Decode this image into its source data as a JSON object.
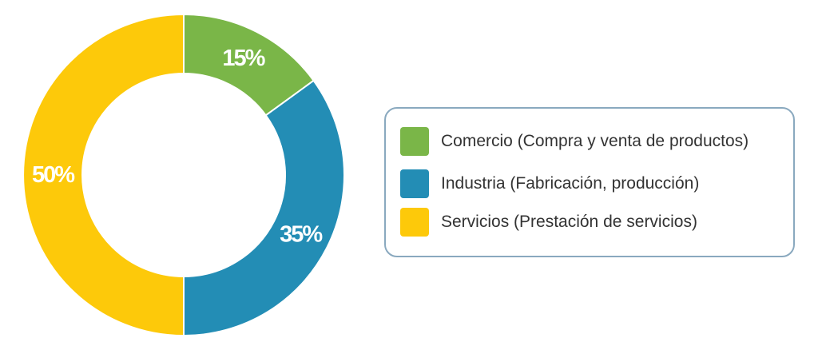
{
  "chart_data": {
    "type": "pie",
    "donut": true,
    "categories": [
      "Comercio (Compra y venta de productos)",
      "Industria (Fabricación, producción)",
      "Servicios (Prestación de servicios)"
    ],
    "values": [
      15,
      35,
      50
    ],
    "value_labels": [
      "15%",
      "35%",
      "50%"
    ],
    "colors": [
      "#7ab648",
      "#238db5",
      "#fdc90a"
    ],
    "start_angle": "top",
    "direction": "clockwise",
    "legend_position": "right",
    "title": ""
  },
  "legend": {
    "items": [
      {
        "label": "Comercio (Compra y venta de productos)",
        "color": "#7ab648"
      },
      {
        "label": "Industria (Fabricación, producción)",
        "color": "#238db5"
      },
      {
        "label": "Servicios (Prestación de servicios)",
        "color": "#fdc90a"
      }
    ]
  }
}
